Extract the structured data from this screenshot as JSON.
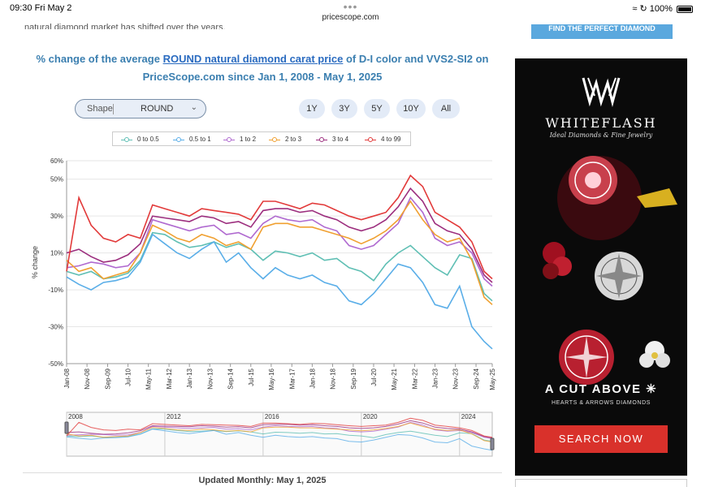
{
  "statusbar": {
    "time": "09:30  Fri May 2",
    "dots": "•••",
    "url": "pricescope.com",
    "battery": "100%"
  },
  "article": {
    "cut_text": "natural diamond market has shifted over the years.",
    "title_part1": "% change of the average ",
    "title_link": "ROUND natural diamond carat price",
    "title_part2": " of D-I color and VVS2-SI2 on",
    "title_line2": "PriceScope.com since Jan 1, 2008 - May 1, 2025",
    "updated": "Updated Monthly: May 1, 2025"
  },
  "controls": {
    "shape_label": "Shape",
    "shape_value": "ROUND",
    "ranges": [
      "1Y",
      "3Y",
      "5Y",
      "10Y",
      "All"
    ]
  },
  "sidebar": {
    "top_button": "FIND THE PERFECT DIAMOND",
    "ad_brand": "WHITEFLASH",
    "ad_tagline": "Ideal Diamonds & Fine Jewelry",
    "ad_headline": "A CUT ABOVE",
    "ad_subline": "HEARTS & ARROWS DIAMONDS",
    "ad_button": "SEARCH NOW"
  },
  "chart_data": {
    "type": "line",
    "title": "",
    "xlabel": "",
    "ylabel": "% change",
    "ylim": [
      -50,
      60
    ],
    "y_ticks": [
      "60%",
      "50%",
      "30%",
      "10%",
      "-10%",
      "-30%",
      "-50%"
    ],
    "y_tick_values": [
      60,
      50,
      30,
      10,
      -10,
      -30,
      -50
    ],
    "x_ticks": [
      "Jan-08",
      "Nov-08",
      "Sep-09",
      "Jul-10",
      "May-11",
      "Mar-12",
      "Jan-13",
      "Nov-13",
      "Sep-14",
      "Jul-15",
      "May-16",
      "Mar-17",
      "Jan-18",
      "Nov-18",
      "Sep-19",
      "Jul-20",
      "May-21",
      "Mar-22",
      "Jan-23",
      "Nov-23",
      "Sep-24",
      "May-25"
    ],
    "x_tick_times": [
      2008.0,
      2008.83,
      2009.67,
      2010.5,
      2011.33,
      2012.17,
      2013.0,
      2013.83,
      2014.67,
      2015.5,
      2016.33,
      2017.17,
      2018.0,
      2018.83,
      2019.67,
      2020.5,
      2021.33,
      2022.17,
      2023.0,
      2023.83,
      2024.67,
      2025.33
    ],
    "x_range": [
      2008.0,
      2025.33
    ],
    "grid": true,
    "legend": "top",
    "navigator_labels": [
      "2008",
      "2012",
      "2016",
      "2020",
      "2024"
    ],
    "navigator_times": [
      2008,
      2012,
      2016,
      2020,
      2024
    ],
    "x": [
      2008.0,
      2008.5,
      2009.0,
      2009.5,
      2010.0,
      2010.5,
      2011.0,
      2011.5,
      2012.0,
      2012.5,
      2013.0,
      2013.5,
      2014.0,
      2014.5,
      2015.0,
      2015.5,
      2016.0,
      2016.5,
      2017.0,
      2017.5,
      2018.0,
      2018.5,
      2019.0,
      2019.5,
      2020.0,
      2020.5,
      2021.0,
      2021.5,
      2022.0,
      2022.5,
      2023.0,
      2023.5,
      2024.0,
      2024.5,
      2025.0,
      2025.33
    ],
    "series": [
      {
        "name": "0 to 0.5",
        "color": "#5fbfb4",
        "values": [
          0,
          -2,
          0,
          -4,
          -3,
          -1,
          6,
          21,
          20,
          16,
          13,
          14,
          16,
          13,
          15,
          12,
          6,
          11,
          10,
          8,
          10,
          6,
          7,
          2,
          0,
          -5,
          4,
          10,
          14,
          8,
          2,
          -2,
          9,
          7,
          -12,
          -16
        ]
      },
      {
        "name": "0.5 to 1",
        "color": "#5aaee8",
        "values": [
          -3,
          -7,
          -10,
          -6,
          -5,
          -3,
          5,
          20,
          15,
          10,
          7,
          12,
          16,
          5,
          10,
          2,
          -4,
          2,
          -2,
          -4,
          -2,
          -6,
          -8,
          -16,
          -18,
          -12,
          -4,
          4,
          2,
          -6,
          -18,
          -20,
          -8,
          -30,
          -38,
          -42
        ]
      },
      {
        "name": "1 to 2",
        "color": "#b06ad0",
        "values": [
          2,
          3,
          5,
          4,
          2,
          3,
          10,
          28,
          26,
          24,
          22,
          24,
          25,
          20,
          21,
          18,
          26,
          30,
          28,
          27,
          28,
          24,
          22,
          14,
          12,
          14,
          20,
          26,
          40,
          32,
          18,
          14,
          16,
          10,
          -4,
          -8
        ]
      },
      {
        "name": "2 to 3",
        "color": "#f0a030",
        "values": [
          6,
          0,
          2,
          -4,
          -2,
          0,
          10,
          25,
          22,
          18,
          16,
          20,
          18,
          14,
          16,
          12,
          24,
          26,
          26,
          24,
          24,
          22,
          20,
          18,
          15,
          18,
          22,
          28,
          38,
          28,
          20,
          16,
          18,
          6,
          -14,
          -18
        ]
      },
      {
        "name": "3 to 4",
        "color": "#9c2e7e",
        "values": [
          10,
          12,
          8,
          5,
          6,
          9,
          15,
          30,
          29,
          28,
          27,
          30,
          29,
          26,
          27,
          24,
          33,
          34,
          34,
          32,
          33,
          30,
          28,
          24,
          22,
          24,
          28,
          35,
          45,
          38,
          26,
          22,
          20,
          12,
          -2,
          -6
        ]
      },
      {
        "name": "4 to 99",
        "color": "#e23a3a",
        "values": [
          0,
          40,
          25,
          18,
          16,
          20,
          18,
          36,
          34,
          32,
          30,
          34,
          33,
          32,
          31,
          28,
          38,
          38,
          36,
          34,
          37,
          36,
          33,
          30,
          28,
          30,
          32,
          40,
          52,
          46,
          32,
          28,
          24,
          16,
          0,
          -4
        ]
      }
    ]
  }
}
